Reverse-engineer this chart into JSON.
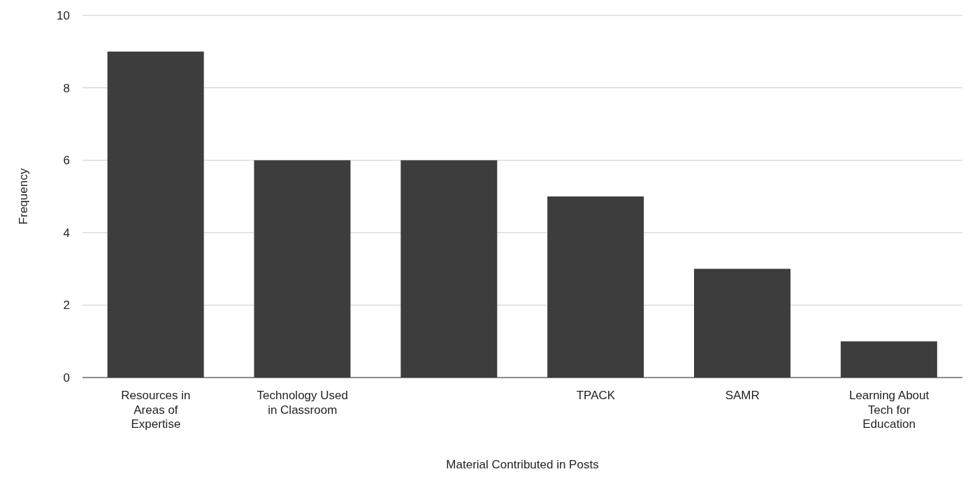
{
  "chart_data": {
    "type": "bar",
    "xlabel": "Material Contributed in Posts",
    "ylabel": "Frequency",
    "categories": [
      "Resources in Areas of Expertise",
      "Technology Used in Classroom",
      null,
      "TPACK",
      "SAMR",
      "Learning About Tech for Education"
    ],
    "values": [
      9,
      6,
      6,
      5,
      3,
      1
    ],
    "color": "#3d3d3d",
    "ylim": [
      0,
      10
    ],
    "yticks": [
      0,
      2,
      4,
      6,
      8,
      10
    ],
    "grid": "y"
  }
}
